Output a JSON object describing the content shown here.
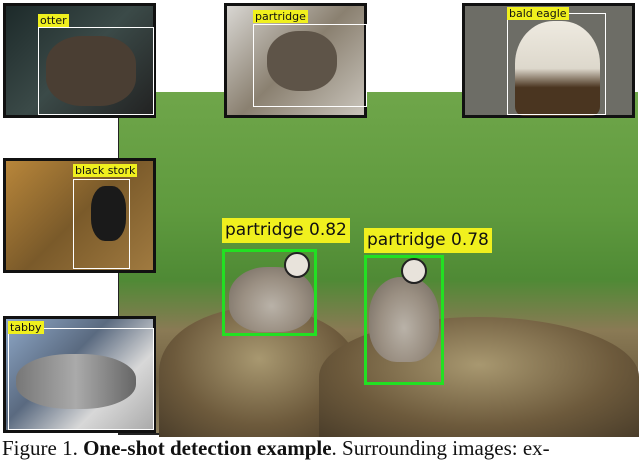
{
  "figure": {
    "main_detections": [
      {
        "label": "partridge 0.82",
        "color": "#22e022"
      },
      {
        "label": "partridge 0.78",
        "color": "#22e022"
      }
    ],
    "surrounding_images": [
      {
        "label": "otter"
      },
      {
        "label": "partridge"
      },
      {
        "label": "bald eagle"
      },
      {
        "label": "black stork"
      },
      {
        "label": "tabby"
      }
    ],
    "label_color": "#f0f01e",
    "caption": {
      "prefix": "Figure 1. ",
      "bold": "One-shot detection example",
      "rest": ". Surrounding images: ex-"
    }
  }
}
